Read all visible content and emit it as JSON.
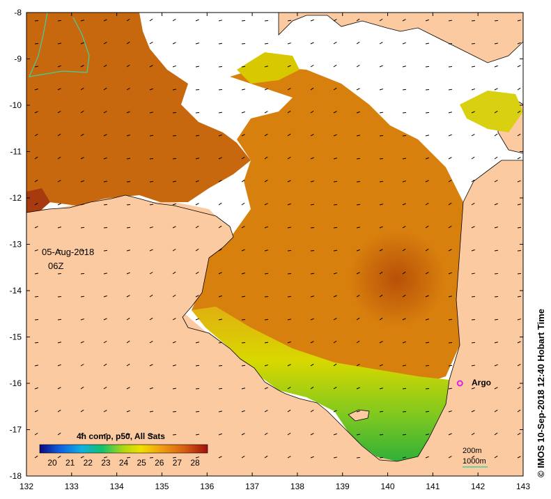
{
  "date_label": "05-Aug-2018",
  "time_label": "06Z",
  "argo_label": "Argo",
  "credit": "© IMOS 10-Sep-2018 12:40 Hobart Time",
  "colorbar": {
    "title": "4h comp, p50, All Sats",
    "ticks": [
      "20",
      "21",
      "22",
      "23",
      "24",
      "25",
      "26",
      "27",
      "28"
    ]
  },
  "depth_legend": {
    "label_200": "200m",
    "label_1000": "1000m"
  },
  "axes": {
    "x_ticks": [
      "132",
      "133",
      "134",
      "135",
      "136",
      "137",
      "138",
      "139",
      "140",
      "141",
      "142",
      "143"
    ],
    "y_ticks": [
      "-8",
      "-9",
      "-10",
      "-11",
      "-12",
      "-13",
      "-14",
      "-15",
      "-16",
      "-17",
      "-18"
    ]
  },
  "colors": {
    "land": "#fccaa0",
    "sst_warm": "#c8640a",
    "sst_mid": "#e49a18",
    "sst_cool": "#dcd000",
    "sst_cold": "#28b030",
    "argo": "#e020e0",
    "isobath_1000": "#40d0a0"
  },
  "chart_data": {
    "type": "heatmap",
    "variable": "SST",
    "x_range": [
      132,
      143
    ],
    "y_range": [
      -18,
      -8
    ],
    "colorbar_range": [
      20,
      28
    ],
    "argo_float": {
      "lon": 141.6,
      "lat": -16.0
    }
  }
}
